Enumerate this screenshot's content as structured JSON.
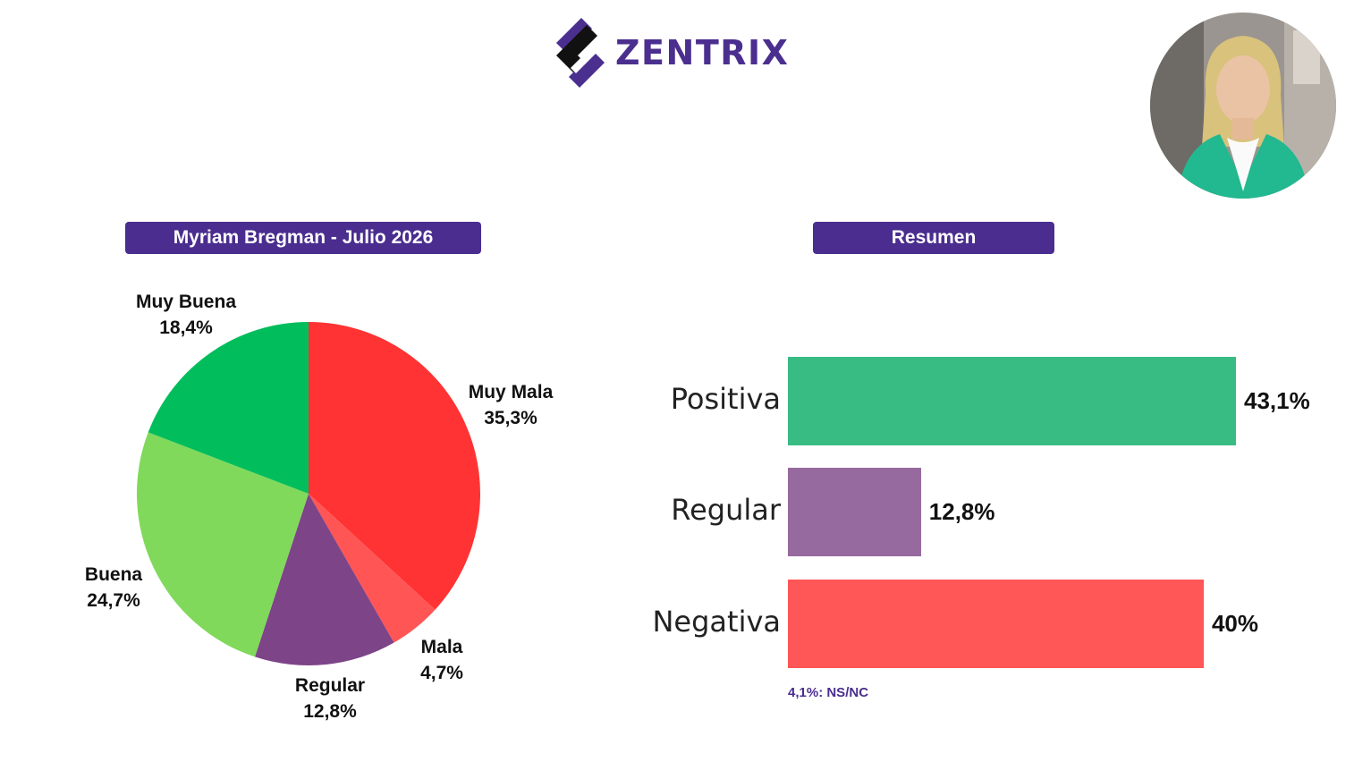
{
  "brand": {
    "name": "ZENTRIX",
    "logo_icon": "zentrix-logo-icon",
    "color": "#4b2f8f"
  },
  "photo": {
    "icon": "person-photo"
  },
  "left_title": "Myriam Bregman - Julio 2026",
  "right_title": "Resumen",
  "note": "4,1%: NS/NC",
  "chart_data": [
    {
      "type": "pie",
      "title": "Myriam Bregman - Julio 2026",
      "slices": [
        {
          "label": "Muy Mala",
          "value": 35.3,
          "display": "35,3%",
          "color": "#ff3333"
        },
        {
          "label": "Mala",
          "value": 4.7,
          "display": "4,7%",
          "color": "#ff5555"
        },
        {
          "label": "Regular",
          "value": 12.8,
          "display": "12,8%",
          "color": "#7d4488"
        },
        {
          "label": "Buena",
          "value": 24.7,
          "display": "24,7%",
          "color": "#80d95a"
        },
        {
          "label": "Muy Buena",
          "value": 18.4,
          "display": "18,4%",
          "color": "#02bd5c"
        }
      ],
      "start": "top, clockwise"
    },
    {
      "type": "bar",
      "orientation": "horizontal",
      "title": "Resumen",
      "categories": [
        "Positiva",
        "Regular",
        "Negativa"
      ],
      "values": [
        43.1,
        12.8,
        40
      ],
      "display": [
        "43,1%",
        "12,8%",
        "40%"
      ],
      "colors": [
        "#38bc83",
        "#976a9f",
        "#ff5657"
      ]
    }
  ]
}
